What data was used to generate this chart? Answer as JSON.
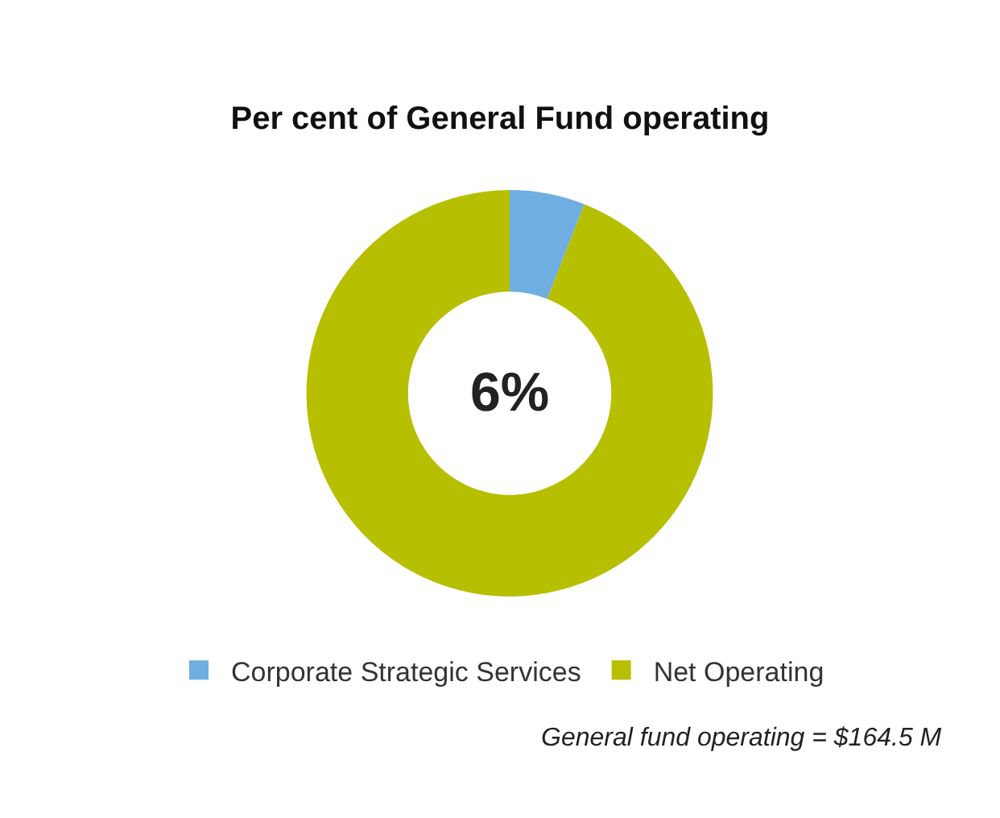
{
  "chart_data": {
    "type": "donut",
    "title": "Per cent of General Fund operating",
    "categories": [
      "Corporate Strategic Services",
      "Net Operating"
    ],
    "values": [
      6,
      94
    ],
    "colors": [
      "#6faee0",
      "#b6bf00"
    ],
    "legend": "bottom",
    "annotations": [
      "6%",
      "General fund operating = $164.5 M"
    ]
  }
}
